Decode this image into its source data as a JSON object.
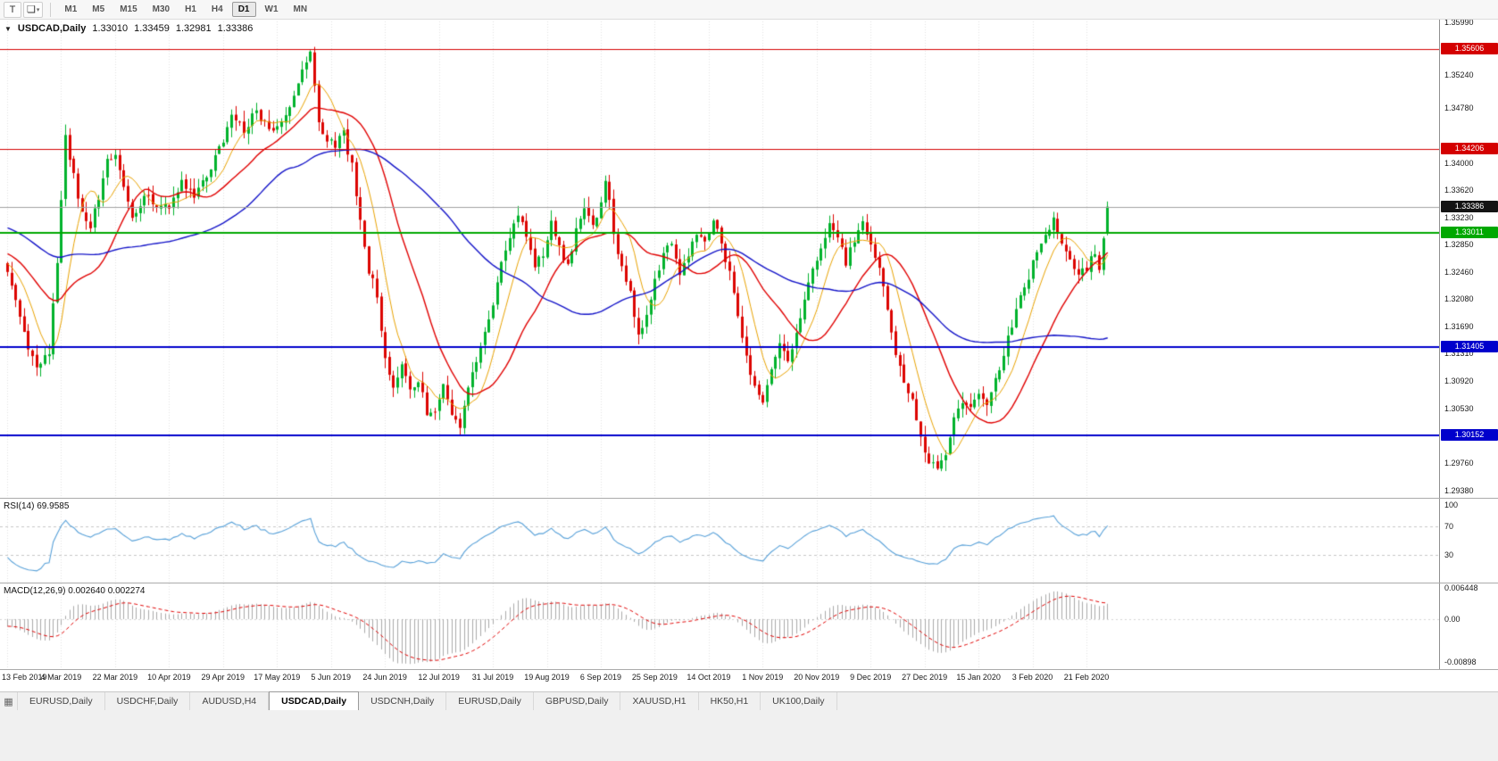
{
  "toolbar": {
    "text_tool_label": "T",
    "dropdown_caret": "▾",
    "timeframes": [
      "M1",
      "M5",
      "M15",
      "M30",
      "H1",
      "H4",
      "D1",
      "W1",
      "MN"
    ],
    "active_timeframe": "D1"
  },
  "chart_header": {
    "collapse_icon": "▼",
    "symbol": "USDCAD,Daily",
    "open": "1.33010",
    "high": "1.33459",
    "low": "1.32981",
    "close": "1.33386"
  },
  "price_axis": {
    "ticks": [
      "1.35990",
      "1.35240",
      "1.34780",
      "1.34000",
      "1.33620",
      "1.33230",
      "1.32850",
      "1.32460",
      "1.32080",
      "1.31690",
      "1.31310",
      "1.30920",
      "1.30530",
      "1.29760",
      "1.29380"
    ],
    "badges": [
      {
        "label": "1.35606",
        "color": "#d40000"
      },
      {
        "label": "1.34206",
        "color": "#d40000"
      },
      {
        "label": "1.33011",
        "color": "#00a800"
      },
      {
        "label": "1.31405",
        "color": "#0000cc"
      },
      {
        "label": "1.30152",
        "color": "#0000cc"
      }
    ],
    "current_price_badge": {
      "label": "1.33386",
      "color": "#141414"
    }
  },
  "rsi": {
    "label": "RSI(14) 69.9585",
    "period": 14,
    "value": 69.9585,
    "axis_labels": [
      "100",
      "70",
      "30"
    ],
    "levels": [
      70,
      30
    ],
    "line_color": "#57a0d8"
  },
  "macd": {
    "label": "MACD(12,26,9) 0.002640 0.002274",
    "fast": 12,
    "slow": 26,
    "signal": 9,
    "values": [
      0.00264,
      0.002274
    ],
    "axis_labels": [
      "0.006448",
      "0.00",
      "-0.00898"
    ],
    "histogram_color": "#aaaaaa",
    "signal_color": "#e00000"
  },
  "tab_bar_icon": "▦",
  "tabs": [
    {
      "label": "EURUSD,Daily",
      "active": false
    },
    {
      "label": "USDCHF,Daily",
      "active": false
    },
    {
      "label": "AUDUSD,H4",
      "active": false
    },
    {
      "label": "USDCAD,Daily",
      "active": true
    },
    {
      "label": "USDCNH,Daily",
      "active": false
    },
    {
      "label": "EURUSD,Daily",
      "active": false
    },
    {
      "label": "GBPUSD,Daily",
      "active": false
    },
    {
      "label": "XAUUSD,H1",
      "active": false
    },
    {
      "label": "HK50,H1",
      "active": false
    },
    {
      "label": "UK100,Daily",
      "active": false
    }
  ],
  "chart_data": {
    "type": "candlestick",
    "symbol": "USDCAD",
    "timeframe": "Daily",
    "bars": 266,
    "bars_per_tick": 13,
    "date_ticks": [
      "13 Feb 2019",
      "4 Mar 2019",
      "22 Mar 2019",
      "10 Apr 2019",
      "29 Apr 2019",
      "17 May 2019",
      "5 Jun 2019",
      "24 Jun 2019",
      "12 Jul 2019",
      "31 Jul 2019",
      "19 Aug 2019",
      "6 Sep 2019",
      "25 Sep 2019",
      "14 Oct 2019",
      "1 Nov 2019",
      "20 Nov 2019",
      "9 Dec 2019",
      "27 Dec 2019",
      "15 Jan 2020",
      "3 Feb 2020",
      "21 Feb 2020"
    ],
    "visible_price_range": [
      1.293,
      1.358
    ],
    "bull_color": "#00b22c",
    "bear_color": "#dc0400",
    "moving_averages": [
      {
        "period": 8,
        "color": "#e8a200"
      },
      {
        "period": 21,
        "color": "#e00000"
      },
      {
        "period": 55,
        "color": "#1414c8"
      }
    ],
    "horizontal_lines": [
      {
        "price": 1.35606,
        "color": "#d40000",
        "width": 1
      },
      {
        "price": 1.34206,
        "color": "#d40000",
        "width": 1
      },
      {
        "price": 1.33011,
        "color": "#00a800",
        "width": 2
      },
      {
        "price": 1.31405,
        "color": "#0000cc",
        "width": 2
      },
      {
        "price": 1.30152,
        "color": "#0000cc",
        "width": 2
      }
    ],
    "current_price": 1.33386,
    "last_bar_ohlc": [
      1.3301,
      1.33459,
      1.32981,
      1.33386
    ],
    "close_path_anchors": [
      [
        0,
        1.3245
      ],
      [
        2,
        1.3205
      ],
      [
        4,
        1.316
      ],
      [
        6,
        1.3125
      ],
      [
        8,
        1.311
      ],
      [
        10,
        1.3135
      ],
      [
        12,
        1.326
      ],
      [
        14,
        1.3435
      ],
      [
        16,
        1.338
      ],
      [
        18,
        1.333
      ],
      [
        20,
        1.3305
      ],
      [
        22,
        1.3355
      ],
      [
        24,
        1.34
      ],
      [
        26,
        1.3415
      ],
      [
        28,
        1.3365
      ],
      [
        30,
        1.3325
      ],
      [
        33,
        1.3355
      ],
      [
        36,
        1.3335
      ],
      [
        39,
        1.334
      ],
      [
        42,
        1.3375
      ],
      [
        45,
        1.335
      ],
      [
        48,
        1.3385
      ],
      [
        51,
        1.342
      ],
      [
        54,
        1.3465
      ],
      [
        57,
        1.3445
      ],
      [
        60,
        1.3475
      ],
      [
        63,
        1.3445
      ],
      [
        66,
        1.346
      ],
      [
        69,
        1.3495
      ],
      [
        72,
        1.3545
      ],
      [
        73,
        1.3555
      ],
      [
        75,
        1.346
      ],
      [
        77,
        1.343
      ],
      [
        79,
        1.3425
      ],
      [
        81,
        1.344
      ],
      [
        83,
        1.3395
      ],
      [
        85,
        1.332
      ],
      [
        87,
        1.325
      ],
      [
        89,
        1.3215
      ],
      [
        91,
        1.312
      ],
      [
        93,
        1.3085
      ],
      [
        95,
        1.3115
      ],
      [
        97,
        1.3075
      ],
      [
        99,
        1.3095
      ],
      [
        101,
        1.305
      ],
      [
        103,
        1.3055
      ],
      [
        105,
        1.3085
      ],
      [
        107,
        1.3045
      ],
      [
        109,
        1.3022
      ],
      [
        111,
        1.3085
      ],
      [
        113,
        1.3125
      ],
      [
        115,
        1.3155
      ],
      [
        117,
        1.3205
      ],
      [
        119,
        1.3265
      ],
      [
        121,
        1.3295
      ],
      [
        123,
        1.333
      ],
      [
        125,
        1.33
      ],
      [
        127,
        1.3258
      ],
      [
        129,
        1.3272
      ],
      [
        131,
        1.3312
      ],
      [
        133,
        1.3282
      ],
      [
        135,
        1.3252
      ],
      [
        137,
        1.3302
      ],
      [
        139,
        1.3332
      ],
      [
        141,
        1.3312
      ],
      [
        143,
        1.3342
      ],
      [
        144,
        1.3378
      ],
      [
        146,
        1.3305
      ],
      [
        148,
        1.3252
      ],
      [
        150,
        1.3222
      ],
      [
        152,
        1.3152
      ],
      [
        154,
        1.3182
      ],
      [
        156,
        1.3232
      ],
      [
        158,
        1.3272
      ],
      [
        160,
        1.3292
      ],
      [
        162,
        1.3242
      ],
      [
        164,
        1.3272
      ],
      [
        166,
        1.3302
      ],
      [
        168,
        1.3292
      ],
      [
        170,
        1.3322
      ],
      [
        172,
        1.3292
      ],
      [
        174,
        1.3242
      ],
      [
        176,
        1.3182
      ],
      [
        178,
        1.3122
      ],
      [
        180,
        1.3082
      ],
      [
        182,
        1.3062
      ],
      [
        184,
        1.3102
      ],
      [
        186,
        1.3142
      ],
      [
        188,
        1.3122
      ],
      [
        190,
        1.3162
      ],
      [
        192,
        1.3202
      ],
      [
        194,
        1.3252
      ],
      [
        196,
        1.3282
      ],
      [
        198,
        1.3312
      ],
      [
        200,
        1.3292
      ],
      [
        202,
        1.3262
      ],
      [
        204,
        1.3292
      ],
      [
        206,
        1.3312
      ],
      [
        208,
        1.3282
      ],
      [
        210,
        1.3252
      ],
      [
        212,
        1.3192
      ],
      [
        214,
        1.3132
      ],
      [
        216,
        1.3092
      ],
      [
        218,
        1.3062
      ],
      [
        220,
        1.3012
      ],
      [
        222,
        1.2982
      ],
      [
        224,
        1.2962
      ],
      [
        226,
        1.2992
      ],
      [
        228,
        1.3042
      ],
      [
        230,
        1.3062
      ],
      [
        232,
        1.3052
      ],
      [
        234,
        1.3072
      ],
      [
        236,
        1.3062
      ],
      [
        238,
        1.3092
      ],
      [
        240,
        1.3132
      ],
      [
        242,
        1.3172
      ],
      [
        244,
        1.3212
      ],
      [
        246,
        1.3242
      ],
      [
        248,
        1.3272
      ],
      [
        250,
        1.3302
      ],
      [
        252,
        1.3322
      ],
      [
        254,
        1.3292
      ],
      [
        256,
        1.3262
      ],
      [
        258,
        1.3242
      ],
      [
        260,
        1.3252
      ],
      [
        262,
        1.3272
      ],
      [
        263,
        1.3255
      ],
      [
        264,
        1.33
      ],
      [
        265,
        1.33386
      ]
    ]
  }
}
